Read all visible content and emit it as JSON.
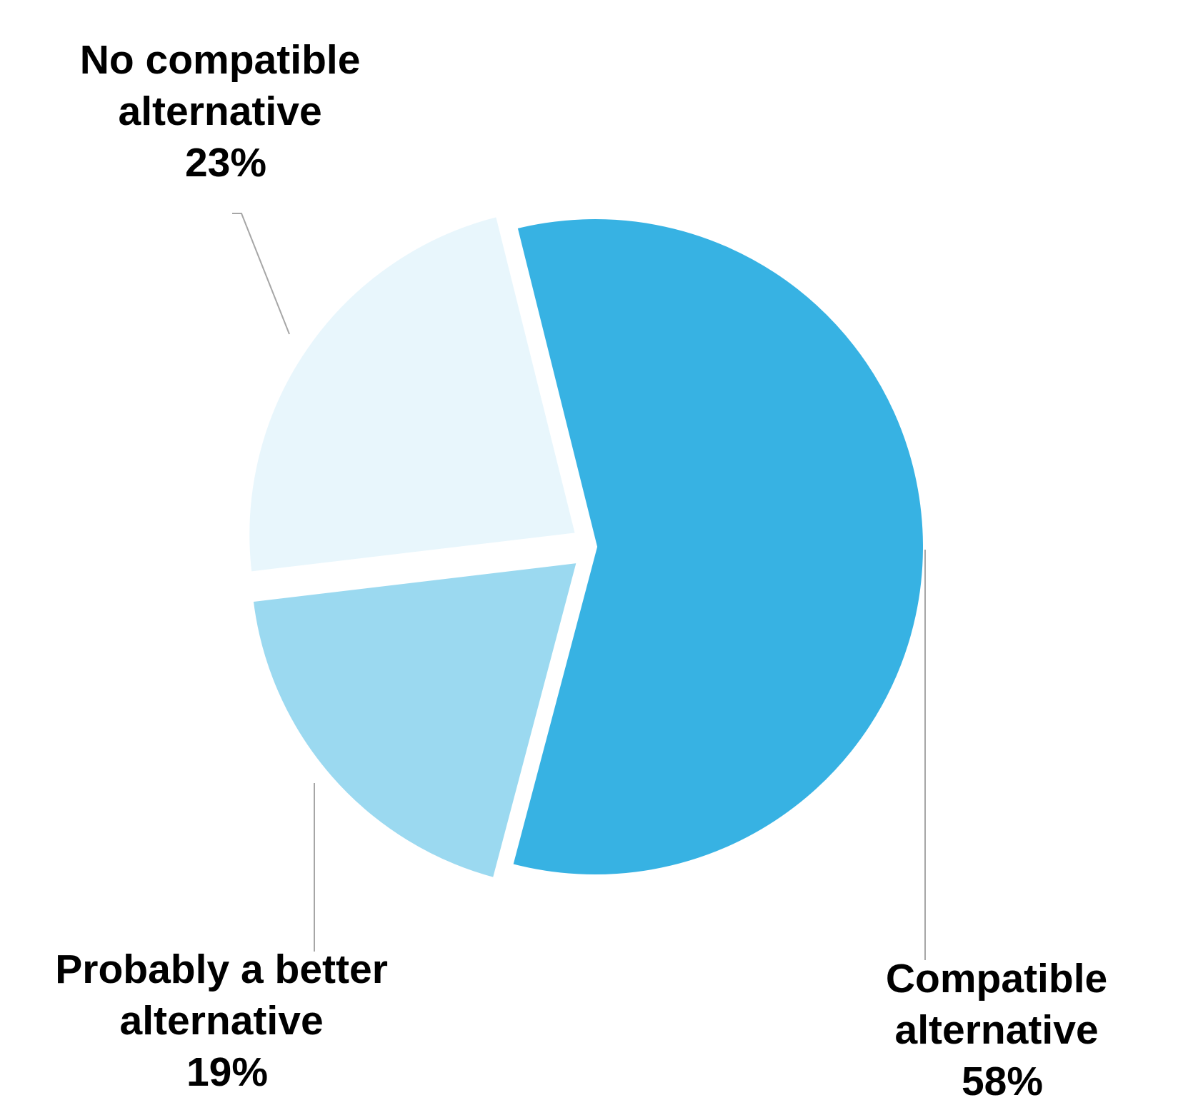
{
  "chart_data": {
    "type": "pie",
    "title": "",
    "categories": [
      "Compatible alternative",
      "Probably a better alternative",
      "No compatible alternative"
    ],
    "values": [
      58,
      19,
      23
    ],
    "unit": "%",
    "exploded": true,
    "slices": [
      {
        "label_lines": [
          "Compatible",
          "alternative"
        ],
        "value_label": "58%",
        "value": 58,
        "color": "#37B2E3"
      },
      {
        "label_lines": [
          "Probably a better",
          "alternative"
        ],
        "value_label": "19%",
        "value": 19,
        "color": "#9BD9F0"
      },
      {
        "label_lines": [
          "No compatible",
          "alternative"
        ],
        "value_label": "23%",
        "value": 23,
        "color": "#E8F6FC"
      }
    ],
    "leader_line_color": "#A6A6A6"
  }
}
